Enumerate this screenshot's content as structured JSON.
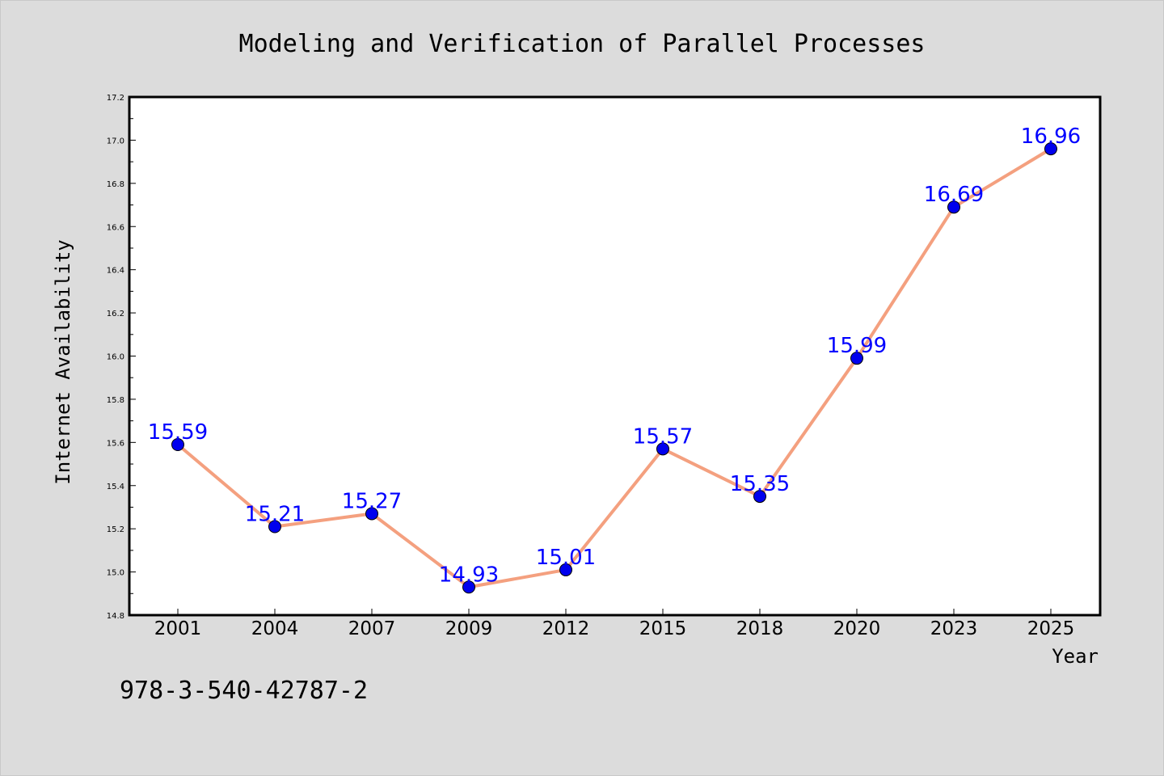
{
  "colors": {
    "background": "#dcdcdc",
    "plot_background": "#ffffff",
    "line": "#f4a07f",
    "marker": "#0000ee",
    "data_label": "#0000ff"
  },
  "footer_text": "978-3-540-42787-2",
  "chart_data": {
    "type": "line",
    "title": "Modeling and Verification of Parallel Processes",
    "xlabel": "Year",
    "ylabel": "Internet Availability",
    "categories": [
      "2001",
      "2004",
      "2007",
      "2009",
      "2012",
      "2015",
      "2018",
      "2020",
      "2023",
      "2025"
    ],
    "series": [
      {
        "values": [
          15.59,
          15.21,
          15.27,
          14.93,
          15.01,
          15.57,
          15.35,
          15.99,
          16.69,
          16.96
        ]
      }
    ],
    "data_labels": [
      "15.59",
      "15.21",
      "15.27",
      "14.93",
      "15.01",
      "15.57",
      "15.35",
      "15.99",
      "16.69",
      "16.96"
    ],
    "ylim": [
      14.8,
      17.2
    ],
    "yticks": [
      14.8,
      15.0,
      15.2,
      15.4,
      15.6,
      15.8,
      16.0,
      16.2,
      16.4,
      16.6,
      16.8,
      17.0,
      17.2
    ],
    "ytick_labels": [
      "14.8",
      "15.0",
      "15.2",
      "15.4",
      "15.6",
      "15.8",
      "16.0",
      "16.2",
      "16.4",
      "16.6",
      "16.8",
      "17.0",
      "17.2"
    ],
    "grid": false,
    "legend": "none"
  }
}
